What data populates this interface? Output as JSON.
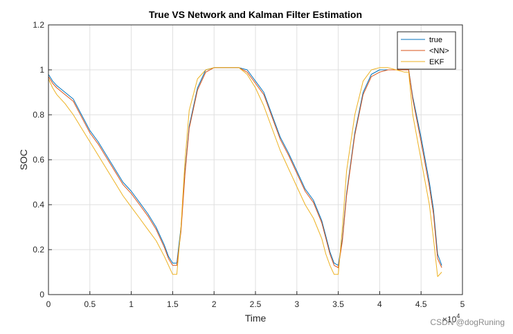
{
  "chart_data": {
    "type": "line",
    "title": "True VS Network and Kalman Filter Estimation",
    "xlabel": "Time",
    "ylabel": "SOC",
    "x_multiplier": "×10",
    "x_multiplier_exp": "4",
    "xlim": [
      0,
      5
    ],
    "ylim": [
      0,
      1.2
    ],
    "xticks": [
      "0",
      "0.5",
      "1",
      "1.5",
      "2",
      "2.5",
      "3",
      "3.5",
      "4",
      "4.5",
      "5"
    ],
    "yticks": [
      "0",
      "0.2",
      "0.4",
      "0.6",
      "0.8",
      "1",
      "1.2"
    ],
    "grid": true,
    "legend_position": "top-right",
    "series": [
      {
        "name": "true",
        "color": "#0072BD",
        "x": [
          0,
          0.05,
          0.1,
          0.2,
          0.3,
          0.4,
          0.5,
          0.6,
          0.7,
          0.8,
          0.9,
          1.0,
          1.1,
          1.2,
          1.3,
          1.4,
          1.45,
          1.5,
          1.55,
          1.6,
          1.65,
          1.7,
          1.8,
          1.9,
          2.0,
          2.1,
          2.2,
          2.3,
          2.4,
          2.5,
          2.6,
          2.7,
          2.8,
          2.9,
          3.0,
          3.1,
          3.2,
          3.3,
          3.35,
          3.4,
          3.45,
          3.5,
          3.55,
          3.6,
          3.7,
          3.8,
          3.9,
          4.0,
          4.1,
          4.2,
          4.3,
          4.35,
          4.4,
          4.5,
          4.6,
          4.65,
          4.7,
          4.75
        ],
        "y": [
          0.98,
          0.95,
          0.93,
          0.9,
          0.87,
          0.8,
          0.73,
          0.68,
          0.62,
          0.56,
          0.5,
          0.46,
          0.41,
          0.36,
          0.3,
          0.22,
          0.17,
          0.14,
          0.14,
          0.3,
          0.55,
          0.75,
          0.92,
          1.0,
          1.01,
          1.01,
          1.01,
          1.01,
          1.0,
          0.95,
          0.9,
          0.8,
          0.7,
          0.63,
          0.55,
          0.47,
          0.42,
          0.33,
          0.26,
          0.19,
          0.14,
          0.13,
          0.25,
          0.45,
          0.72,
          0.9,
          0.98,
          1.0,
          1.0,
          1.0,
          1.0,
          1.0,
          0.88,
          0.7,
          0.5,
          0.38,
          0.18,
          0.13
        ]
      },
      {
        "name": "<NN>",
        "color": "#D95319",
        "x": [
          0,
          0.05,
          0.1,
          0.2,
          0.3,
          0.4,
          0.5,
          0.6,
          0.7,
          0.8,
          0.9,
          1.0,
          1.1,
          1.2,
          1.3,
          1.4,
          1.45,
          1.5,
          1.55,
          1.6,
          1.65,
          1.7,
          1.8,
          1.9,
          2.0,
          2.1,
          2.2,
          2.3,
          2.4,
          2.5,
          2.6,
          2.7,
          2.8,
          2.9,
          3.0,
          3.1,
          3.2,
          3.3,
          3.35,
          3.4,
          3.45,
          3.5,
          3.55,
          3.6,
          3.7,
          3.8,
          3.9,
          4.0,
          4.1,
          4.2,
          4.3,
          4.35,
          4.4,
          4.5,
          4.6,
          4.65,
          4.7,
          4.75
        ],
        "y": [
          0.97,
          0.94,
          0.92,
          0.89,
          0.86,
          0.79,
          0.72,
          0.67,
          0.61,
          0.55,
          0.49,
          0.45,
          0.4,
          0.35,
          0.29,
          0.21,
          0.16,
          0.13,
          0.13,
          0.28,
          0.54,
          0.74,
          0.91,
          0.99,
          1.01,
          1.01,
          1.01,
          1.01,
          0.99,
          0.94,
          0.89,
          0.79,
          0.69,
          0.62,
          0.54,
          0.46,
          0.41,
          0.32,
          0.25,
          0.18,
          0.13,
          0.12,
          0.24,
          0.44,
          0.71,
          0.89,
          0.97,
          0.99,
          1.0,
          1.0,
          1.0,
          1.0,
          0.87,
          0.68,
          0.48,
          0.36,
          0.16,
          0.12
        ]
      },
      {
        "name": "EKF",
        "color": "#EDB120",
        "x": [
          0,
          0.05,
          0.1,
          0.2,
          0.3,
          0.4,
          0.5,
          0.6,
          0.7,
          0.8,
          0.9,
          1.0,
          1.1,
          1.2,
          1.3,
          1.4,
          1.45,
          1.5,
          1.55,
          1.6,
          1.65,
          1.7,
          1.8,
          1.9,
          2.0,
          2.1,
          2.2,
          2.3,
          2.4,
          2.5,
          2.6,
          2.7,
          2.8,
          2.9,
          3.0,
          3.1,
          3.2,
          3.3,
          3.35,
          3.4,
          3.45,
          3.5,
          3.55,
          3.6,
          3.7,
          3.8,
          3.9,
          4.0,
          4.1,
          4.2,
          4.3,
          4.35,
          4.4,
          4.5,
          4.6,
          4.65,
          4.7,
          4.75
        ],
        "y": [
          0.96,
          0.92,
          0.89,
          0.85,
          0.8,
          0.74,
          0.68,
          0.62,
          0.56,
          0.5,
          0.44,
          0.39,
          0.34,
          0.29,
          0.24,
          0.17,
          0.13,
          0.09,
          0.09,
          0.3,
          0.6,
          0.82,
          0.96,
          1.0,
          1.01,
          1.01,
          1.01,
          1.01,
          0.98,
          0.92,
          0.84,
          0.74,
          0.64,
          0.56,
          0.48,
          0.4,
          0.34,
          0.25,
          0.18,
          0.13,
          0.09,
          0.09,
          0.3,
          0.55,
          0.8,
          0.95,
          1.0,
          1.01,
          1.01,
          1.0,
          0.99,
          0.99,
          0.8,
          0.6,
          0.4,
          0.25,
          0.08,
          0.1
        ]
      }
    ]
  },
  "watermark": "CSDN @dogRuning"
}
